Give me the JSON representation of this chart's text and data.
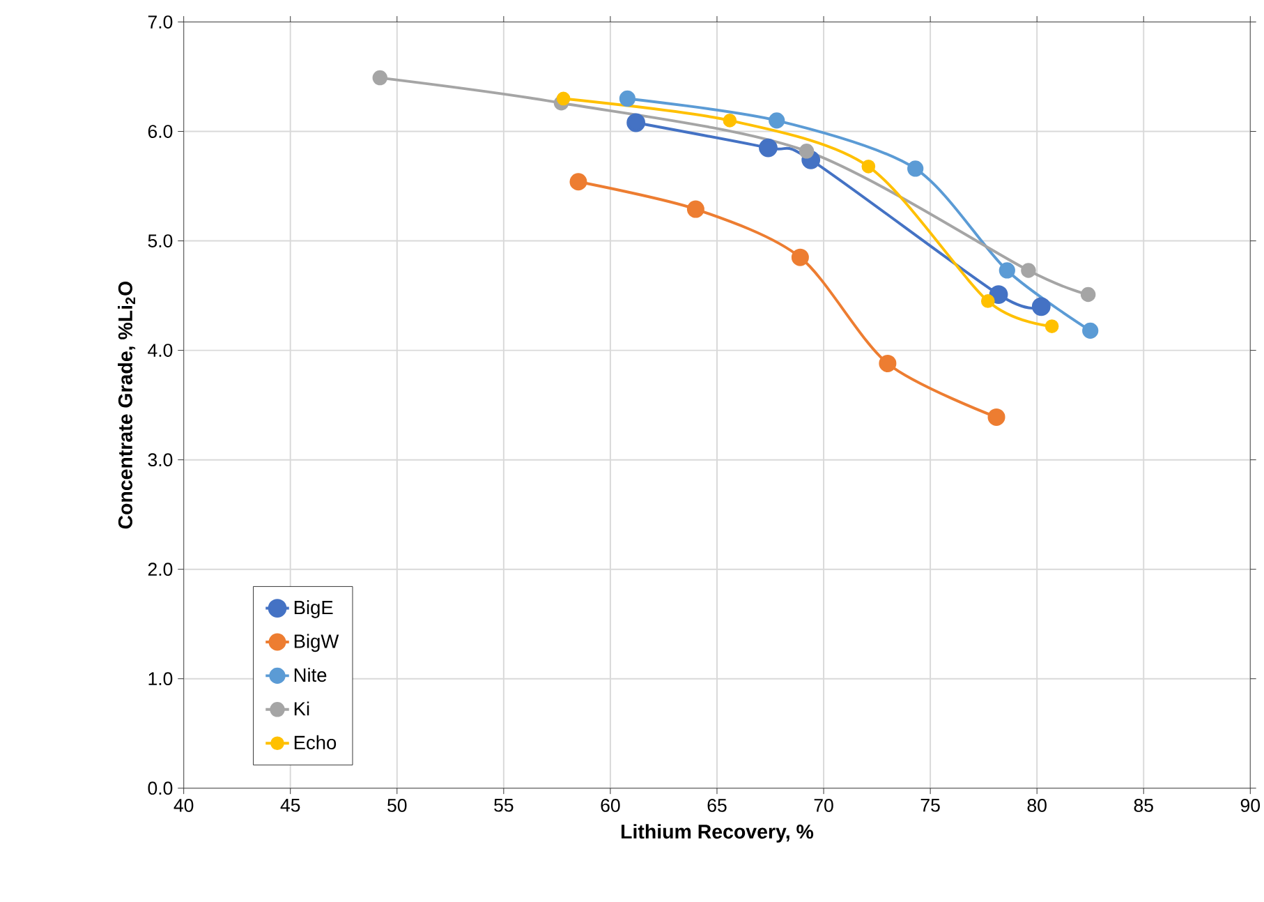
{
  "chart_data": {
    "type": "line",
    "xlabel": "Lithium Recovery, %",
    "ylabel": "Concentrate Grade, %Li$_{2}$O",
    "xlim": [
      40,
      90
    ],
    "xticks": [
      40,
      45,
      50,
      55,
      60,
      65,
      70,
      75,
      80,
      85,
      90
    ],
    "ylim": [
      0,
      7
    ],
    "yticks": [
      {
        "value": 0,
        "label": "0.0"
      },
      {
        "value": 1,
        "label": "1.0"
      },
      {
        "value": 2,
        "label": "2.0"
      },
      {
        "value": 3,
        "label": "3.0"
      },
      {
        "value": 4,
        "label": "4.0"
      },
      {
        "value": 5,
        "label": "5.0"
      },
      {
        "value": 6,
        "label": "6.0"
      },
      {
        "value": 7,
        "label": "7.0"
      }
    ],
    "grid": true,
    "legend": "bottom left",
    "marker": "circle",
    "line_style": "solid",
    "series": [
      {
        "name": "BigE",
        "color": "#4472c4",
        "x": [
          61.2,
          67.4,
          69.4,
          78.2,
          80.2
        ],
        "values": [
          6.08,
          5.85,
          5.74,
          4.51,
          4.4
        ]
      },
      {
        "name": "BigW",
        "color": "#ed7d31",
        "x": [
          58.5,
          64.0,
          68.9,
          73.0,
          78.1
        ],
        "values": [
          5.54,
          5.29,
          4.85,
          3.88,
          3.39
        ]
      },
      {
        "name": "Nite",
        "color": "#5b9bd5",
        "x": [
          60.8,
          67.8,
          74.3,
          78.6,
          82.5
        ],
        "values": [
          6.3,
          6.1,
          5.66,
          4.73,
          4.18
        ]
      },
      {
        "name": "Ki",
        "color": "#a5a5a5",
        "x": [
          49.2,
          57.7,
          69.2,
          79.6,
          82.4
        ],
        "values": [
          6.49,
          6.26,
          5.82,
          4.73,
          4.51
        ]
      },
      {
        "name": "Echo",
        "color": "#ffc000",
        "x": [
          57.8,
          65.6,
          72.1,
          77.7,
          80.7
        ],
        "values": [
          6.3,
          6.1,
          5.68,
          4.45,
          4.22
        ]
      }
    ]
  }
}
